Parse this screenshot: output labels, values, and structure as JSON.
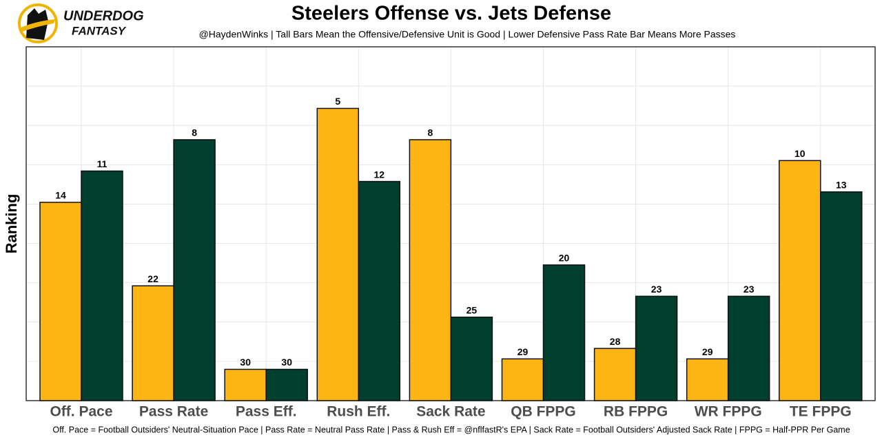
{
  "logo": {
    "line1": "UNDERDOG",
    "line2": "FANTASY"
  },
  "chart_data": {
    "type": "bar",
    "title": "Steelers Offense vs. Jets Defense",
    "subtitle": "@HaydenWinks | Tall Bars Mean the Offensive/Defensive Unit is Good | Lower Defensive Pass Rate Bar Means More Passes",
    "y_label": "Ranking",
    "caption": "Off. Pace = Football Outsiders' Neutral-Situation Pace | Pass Rate = Neutral Pass Rate | Pass & Rush Eff = @nflfastR's EPA | Sack Rate = Football Outsiders' Adjusted Sack Rate | FPPG = Half-PPR Per Game",
    "categories": [
      "Off. Pace",
      "Pass Rate",
      "Pass Eff.",
      "Rush Eff.",
      "Sack Rate",
      "QB FPPG",
      "RB FPPG",
      "WR FPPG",
      "TE FPPG"
    ],
    "series": [
      {
        "color": "#fdb515",
        "values": [
          14,
          22,
          30,
          5,
          8,
          29,
          28,
          29,
          10
        ]
      },
      {
        "color": "#003f2e",
        "values": [
          11,
          8,
          30,
          12,
          25,
          20,
          23,
          23,
          13
        ]
      }
    ],
    "ylim": [
      33,
      -0.9
    ]
  }
}
